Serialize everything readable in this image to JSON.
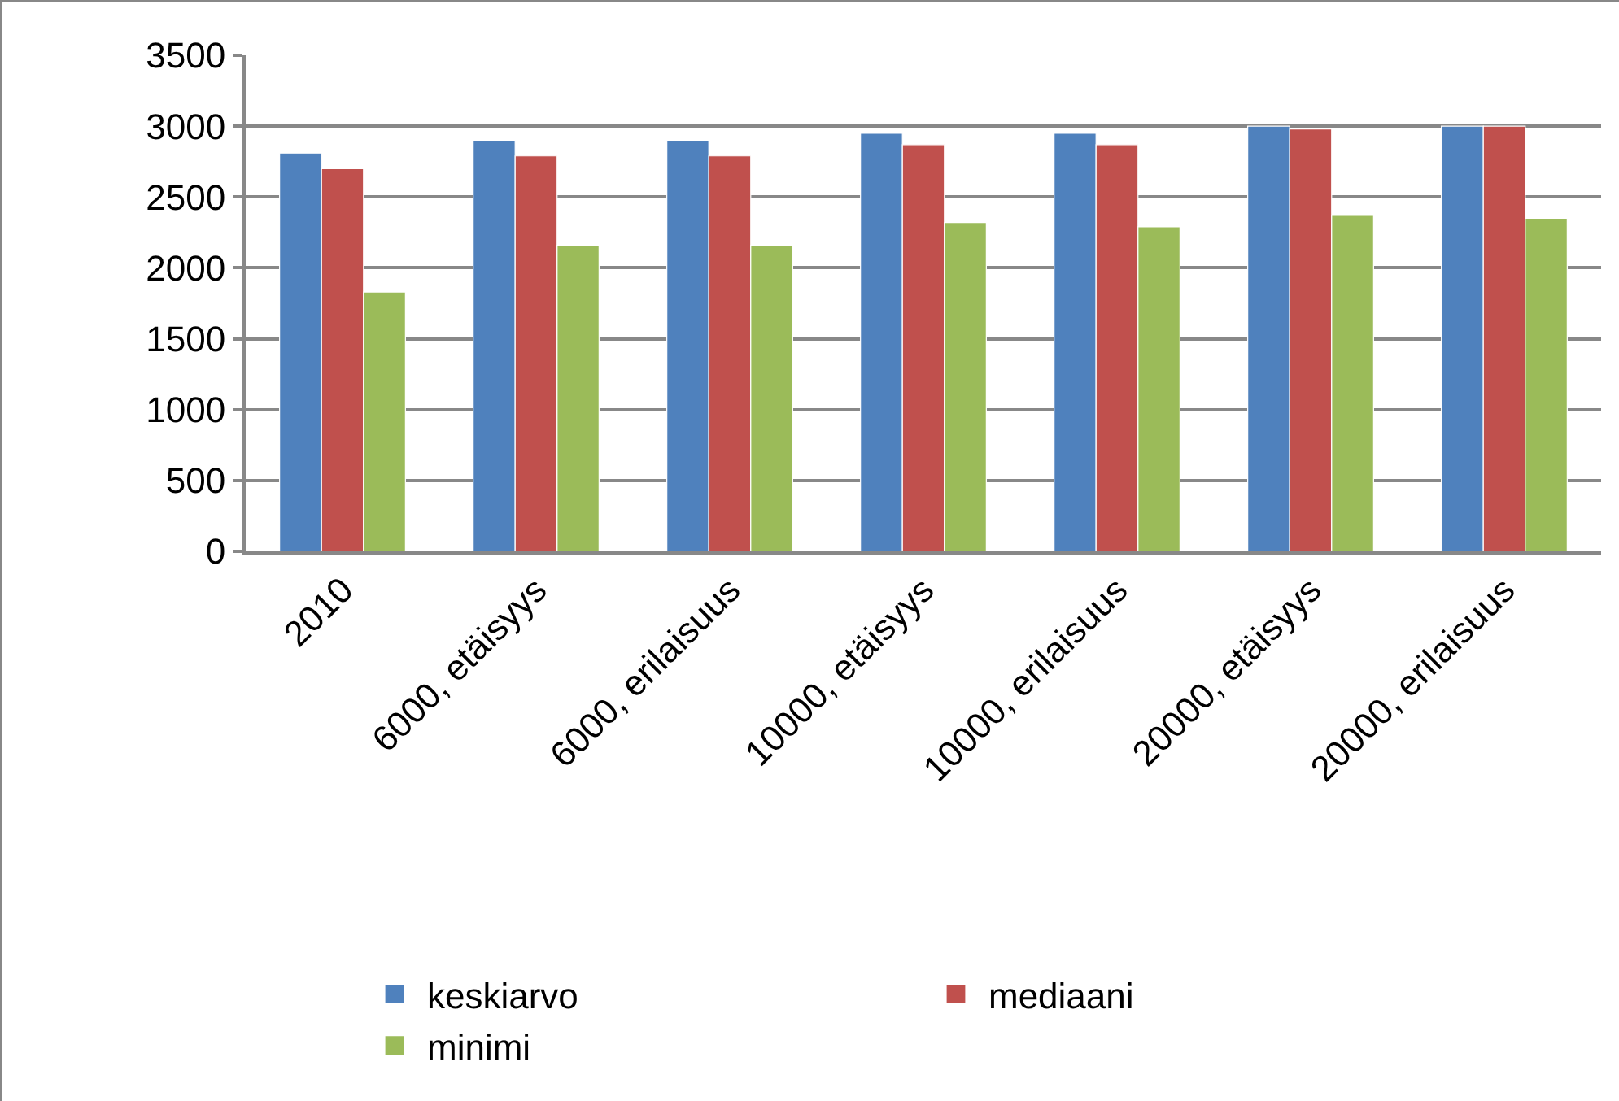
{
  "chart_data": {
    "type": "bar",
    "categories": [
      "2010",
      "6000, etäisyys",
      "6000, erilaisuus",
      "10000, etäisyys",
      "10000, erilaisuus",
      "20000, etäisyys",
      "20000, erilaisuus"
    ],
    "series": [
      {
        "name": "keskiarvo",
        "color": "#4f81bd",
        "values": [
          2810,
          2900,
          2900,
          2950,
          2950,
          3000,
          3000
        ]
      },
      {
        "name": "mediaani",
        "color": "#c0504d",
        "values": [
          2700,
          2790,
          2790,
          2870,
          2870,
          2980,
          3000
        ]
      },
      {
        "name": "minimi",
        "color": "#9bbb59",
        "values": [
          1830,
          2160,
          2160,
          2320,
          2290,
          2370,
          2350
        ]
      }
    ],
    "ylim": [
      0,
      3500
    ],
    "yticks": [
      0,
      500,
      1000,
      1500,
      2000,
      2500,
      3000,
      3500
    ],
    "grid": "y",
    "legend": "bottom"
  }
}
